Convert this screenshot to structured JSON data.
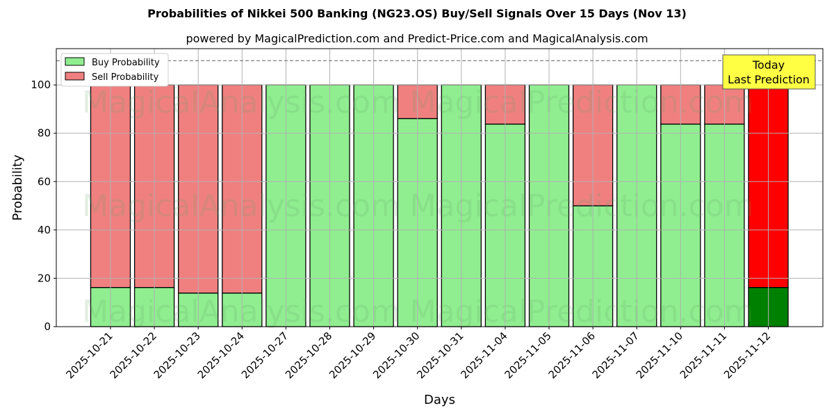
{
  "chart_data": {
    "type": "bar",
    "stacked": true,
    "title": "Probabilities of Nikkei 500 Banking (NG23.OS) Buy/Sell Signals Over 15 Days (Nov 13)",
    "subtitle": "powered by MagicalPrediction.com and Predict-Price.com and MagicalAnalysis.com",
    "xlabel": "Days",
    "ylabel": "Probability",
    "ylim": [
      0,
      115
    ],
    "yticks": [
      0,
      20,
      40,
      60,
      80,
      100
    ],
    "grid": true,
    "legend_position": "upper left",
    "categories": [
      "2025-10-21",
      "2025-10-22",
      "2025-10-23",
      "2025-10-24",
      "2025-10-27",
      "2025-10-28",
      "2025-10-29",
      "2025-10-30",
      "2025-10-31",
      "2025-11-04",
      "2025-11-05",
      "2025-11-06",
      "2025-11-07",
      "2025-11-10",
      "2025-11-11",
      "2025-11-12"
    ],
    "series": [
      {
        "name": "Buy Probability",
        "color": "#90ee90",
        "values": [
          16.2,
          16.2,
          13.9,
          13.9,
          100,
          100,
          100,
          86.1,
          100,
          83.8,
          100,
          50,
          100,
          83.8,
          83.8,
          16.2
        ]
      },
      {
        "name": "Sell Probability",
        "color": "#f08080",
        "values": [
          83.8,
          83.8,
          86.1,
          86.1,
          0,
          0,
          0,
          13.9,
          0,
          16.2,
          0,
          50,
          0,
          16.2,
          16.2,
          83.8
        ]
      }
    ],
    "highlight": {
      "index": 15,
      "buy_color": "#008000",
      "sell_color": "#ff0000"
    },
    "reference_line": {
      "y": 110,
      "style": "dashed",
      "color": "#808080"
    },
    "annotation": {
      "text_line1": "Today",
      "text_line2": "Last Prediction",
      "bg": "#ffff44"
    },
    "watermarks": [
      "MagicalAnalysis.com",
      "MagicalPrediction.com"
    ]
  }
}
